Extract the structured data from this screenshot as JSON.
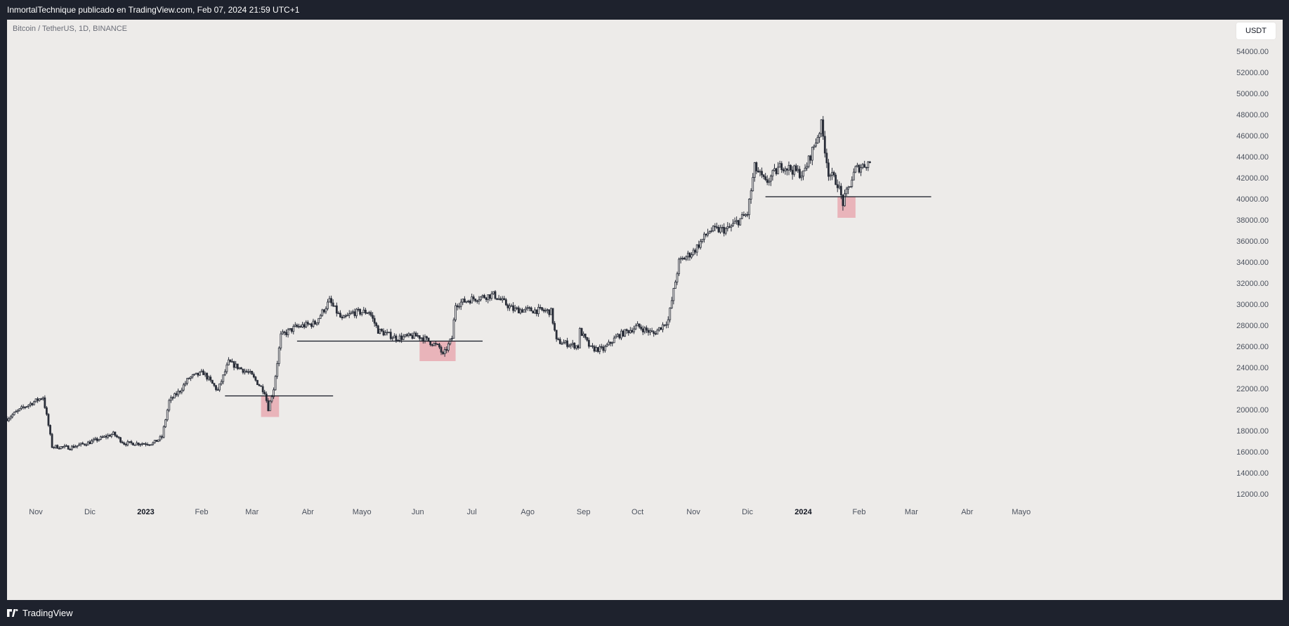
{
  "header": {
    "text": "InmortalTechnique publicado en TradingView.com, Feb 07, 2024 21:59 UTC+1"
  },
  "chart": {
    "symbol": "Bitcoin / TetherUS, 1D, BINANCE",
    "currency": "USDT"
  },
  "footer": {
    "brand": "TradingView",
    "logo_icon": "tradingview-logo-icon"
  },
  "colors": {
    "background": "#edebe9",
    "frame": "#1e222d",
    "candle": "#2a2e39",
    "line": "#131722",
    "zone": "#e8aab1",
    "axis_text": "#4c525e"
  },
  "chart_data": {
    "type": "candlestick",
    "title": "Bitcoin / TetherUS, 1D, BINANCE",
    "ylim": [
      11000,
      57000
    ],
    "y_ticks": [
      12000,
      14000,
      16000,
      18000,
      20000,
      22000,
      24000,
      26000,
      28000,
      30000,
      32000,
      34000,
      36000,
      38000,
      40000,
      42000,
      44000,
      46000,
      48000,
      50000,
      52000,
      54000
    ],
    "y_tick_labels": [
      "12000.00",
      "14000.00",
      "16000.00",
      "18000.00",
      "20000.00",
      "22000.00",
      "24000.00",
      "26000.00",
      "28000.00",
      "30000.00",
      "32000.00",
      "34000.00",
      "36000.00",
      "38000.00",
      "40000.00",
      "42000.00",
      "44000.00",
      "46000.00",
      "48000.00",
      "50000.00",
      "52000.00",
      "54000.00"
    ],
    "x_range": [
      "2022-10-16",
      "2024-05-19"
    ],
    "x_ticks": [
      {
        "label": "Nov",
        "date": "2022-11-01",
        "bold": false
      },
      {
        "label": "Dic",
        "date": "2022-12-01",
        "bold": false
      },
      {
        "label": "2023",
        "date": "2023-01-01",
        "bold": true
      },
      {
        "label": "Feb",
        "date": "2023-02-01",
        "bold": false
      },
      {
        "label": "Mar",
        "date": "2023-03-01",
        "bold": false
      },
      {
        "label": "Abr",
        "date": "2023-04-01",
        "bold": false
      },
      {
        "label": "Mayo",
        "date": "2023-05-01",
        "bold": false
      },
      {
        "label": "Jun",
        "date": "2023-06-01",
        "bold": false
      },
      {
        "label": "Jul",
        "date": "2023-07-01",
        "bold": false
      },
      {
        "label": "Ago",
        "date": "2023-08-01",
        "bold": false
      },
      {
        "label": "Sep",
        "date": "2023-09-01",
        "bold": false
      },
      {
        "label": "Oct",
        "date": "2023-10-01",
        "bold": false
      },
      {
        "label": "Nov",
        "date": "2023-11-01",
        "bold": false
      },
      {
        "label": "Dic",
        "date": "2023-12-01",
        "bold": false
      },
      {
        "label": "2024",
        "date": "2024-01-01",
        "bold": true
      },
      {
        "label": "Feb",
        "date": "2024-02-01",
        "bold": false
      },
      {
        "label": "Mar",
        "date": "2024-03-01",
        "bold": false
      },
      {
        "label": "Abr",
        "date": "2024-04-01",
        "bold": false
      },
      {
        "label": "Mayo",
        "date": "2024-05-01",
        "bold": false
      }
    ],
    "price_path": [
      [
        "2022-10-16",
        19150
      ],
      [
        "2022-10-25",
        20200
      ],
      [
        "2022-11-05",
        21200
      ],
      [
        "2022-11-08",
        18500
      ],
      [
        "2022-11-10",
        16500
      ],
      [
        "2022-11-20",
        16400
      ],
      [
        "2022-12-01",
        16900
      ],
      [
        "2022-12-14",
        17700
      ],
      [
        "2022-12-20",
        16800
      ],
      [
        "2023-01-05",
        16800
      ],
      [
        "2023-01-10",
        17400
      ],
      [
        "2023-01-14",
        20800
      ],
      [
        "2023-01-20",
        21800
      ],
      [
        "2023-01-25",
        23000
      ],
      [
        "2023-02-02",
        23500
      ],
      [
        "2023-02-10",
        21800
      ],
      [
        "2023-02-16",
        24500
      ],
      [
        "2023-02-28",
        23400
      ],
      [
        "2023-03-08",
        21700
      ],
      [
        "2023-03-10",
        20100
      ],
      [
        "2023-03-13",
        22000
      ],
      [
        "2023-03-17",
        27000
      ],
      [
        "2023-03-25",
        27800
      ],
      [
        "2023-04-05",
        28200
      ],
      [
        "2023-04-13",
        30300
      ],
      [
        "2023-04-20",
        28500
      ],
      [
        "2023-04-26",
        29200
      ],
      [
        "2023-05-05",
        29300
      ],
      [
        "2023-05-10",
        27500
      ],
      [
        "2023-05-20",
        26800
      ],
      [
        "2023-06-01",
        27000
      ],
      [
        "2023-06-05",
        26700
      ],
      [
        "2023-06-13",
        25900
      ],
      [
        "2023-06-15",
        25100
      ],
      [
        "2023-06-20",
        26800
      ],
      [
        "2023-06-22",
        30000
      ],
      [
        "2023-07-01",
        30500
      ],
      [
        "2023-07-13",
        30900
      ],
      [
        "2023-07-24",
        29500
      ],
      [
        "2023-08-08",
        29400
      ],
      [
        "2023-08-14",
        29300
      ],
      [
        "2023-08-17",
        26500
      ],
      [
        "2023-08-29",
        26000
      ],
      [
        "2023-08-30",
        27500
      ],
      [
        "2023-09-05",
        25800
      ],
      [
        "2023-09-12",
        25700
      ],
      [
        "2023-09-20",
        27000
      ],
      [
        "2023-10-01",
        27900
      ],
      [
        "2023-10-10",
        27200
      ],
      [
        "2023-10-18",
        28500
      ],
      [
        "2023-10-24",
        34000
      ],
      [
        "2023-11-01",
        35000
      ],
      [
        "2023-11-10",
        37000
      ],
      [
        "2023-11-20",
        37100
      ],
      [
        "2023-12-01",
        38600
      ],
      [
        "2023-12-05",
        43000
      ],
      [
        "2023-12-11",
        41500
      ],
      [
        "2023-12-20",
        43200
      ],
      [
        "2024-01-01",
        42300
      ],
      [
        "2024-01-08",
        45500
      ],
      [
        "2024-01-11",
        47000
      ],
      [
        "2024-01-15",
        42500
      ],
      [
        "2024-01-20",
        41500
      ],
      [
        "2024-01-23",
        39600
      ],
      [
        "2024-01-30",
        42800
      ],
      [
        "2024-02-07",
        43500
      ]
    ],
    "levels": [
      {
        "price": 21300,
        "from": "2023-02-14",
        "to": "2023-04-15"
      },
      {
        "price": 26500,
        "from": "2023-03-26",
        "to": "2023-07-07"
      },
      {
        "price": 40200,
        "from": "2023-12-11",
        "to": "2024-03-12"
      }
    ],
    "zones": [
      {
        "from": "2023-03-06",
        "to": "2023-03-16",
        "low": 19300,
        "high": 21300
      },
      {
        "from": "2023-06-02",
        "to": "2023-06-22",
        "low": 24600,
        "high": 26500
      },
      {
        "from": "2024-01-20",
        "to": "2024-01-30",
        "low": 38200,
        "high": 40200
      }
    ]
  }
}
